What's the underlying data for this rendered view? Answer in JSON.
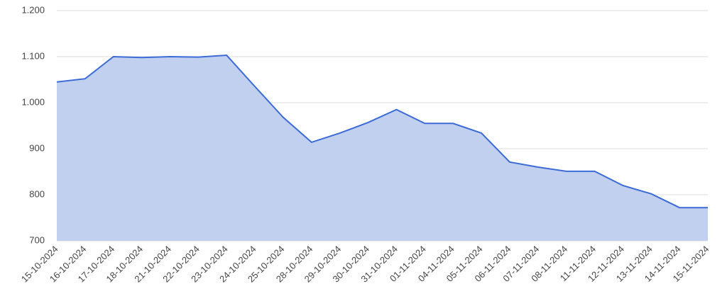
{
  "chart_data": {
    "type": "area",
    "categories": [
      "15-10-2024",
      "16-10-2024",
      "17-10-2024",
      "18-10-2024",
      "21-10-2024",
      "22-10-2024",
      "23-10-2024",
      "24-10-2024",
      "25-10-2024",
      "28-10-2024",
      "29-10-2024",
      "30-10-2024",
      "31-10-2024",
      "01-11-2024",
      "04-11-2024",
      "05-11-2024",
      "06-11-2024",
      "07-11-2024",
      "08-11-2024",
      "11-11-2024",
      "12-11-2024",
      "13-11-2024",
      "14-11-2024",
      "15-11-2024"
    ],
    "values": [
      1045,
      1052,
      1100,
      1098,
      1100,
      1099,
      1103,
      1035,
      968,
      914,
      934,
      957,
      985,
      955,
      955,
      934,
      871,
      860,
      851,
      851,
      820,
      802,
      772,
      772
    ],
    "color": "#3c6bd6",
    "fill": "#c2d0f0",
    "ylim": [
      700,
      1200
    ],
    "yticks": [
      700,
      800,
      900,
      {
        "value": 1000,
        "label": "1.000"
      },
      {
        "value": 1100,
        "label": "1.100"
      },
      {
        "value": 1200,
        "label": "1.200"
      }
    ],
    "grid": true
  }
}
